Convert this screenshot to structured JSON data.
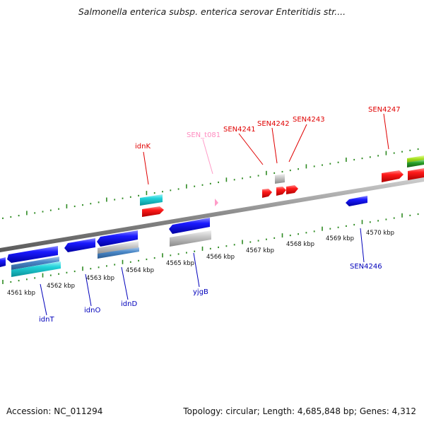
{
  "header": {
    "title": "Salmonella enterica subsp. enterica serovar Enteritidis str...."
  },
  "footer": {
    "accession": "Accession: NC_011294",
    "summary": "Topology: circular; Length: 4,685,848 bp; Genes: 4,312"
  },
  "colors": {
    "backbone": "#8a8a8a",
    "tick": "#2e8b22",
    "forward_gene": "#ff1010",
    "reverse_gene": "#1414e6",
    "cyan_gene": "#1fd0d8",
    "steelblue_gene": "#4a88c8",
    "gray_gene": "#c8c8c8",
    "rna_gene": "#ff9cc8",
    "green_gene": "#2aa02a",
    "lime_gene": "#9be020",
    "label_forward": "#e00000",
    "label_reverse": "#0000bb",
    "label_rna": "#ff8cc0"
  },
  "scale": {
    "labels": [
      "4561 kbp",
      "4562 kbp",
      "4563 kbp",
      "4564 kbp",
      "4565 kbp",
      "4566 kbp",
      "4567 kbp",
      "4568 kbp",
      "4569 kbp",
      "4570 kbp"
    ]
  },
  "genes": {
    "forward_labels": [
      "idnK",
      "SEN_t081",
      "SEN4241",
      "SEN4242",
      "SEN4243",
      "SEN4247"
    ],
    "reverse_labels": [
      "idnT",
      "idnO",
      "idnD",
      "yjgB",
      "SEN4246"
    ]
  }
}
